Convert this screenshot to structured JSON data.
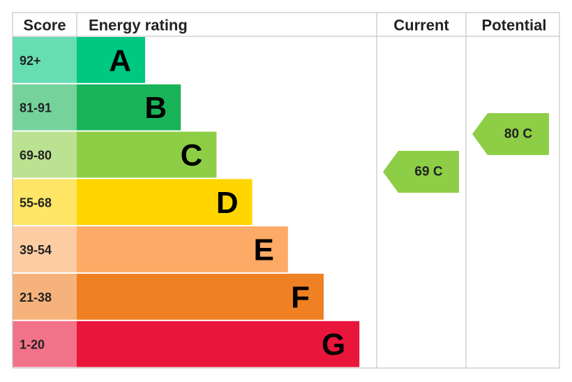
{
  "header": {
    "score": "Score",
    "rating": "Energy rating",
    "current": "Current",
    "potential": "Potential"
  },
  "bands": [
    {
      "score": "92+",
      "letter": "A",
      "color": "#00c781"
    },
    {
      "score": "81-91",
      "letter": "B",
      "color": "#19b459"
    },
    {
      "score": "69-80",
      "letter": "C",
      "color": "#8dce46"
    },
    {
      "score": "55-68",
      "letter": "D",
      "color": "#ffd500"
    },
    {
      "score": "39-54",
      "letter": "E",
      "color": "#fcaa65"
    },
    {
      "score": "21-38",
      "letter": "F",
      "color": "#ef8023"
    },
    {
      "score": "1-20",
      "letter": "G",
      "color": "#e9153b"
    }
  ],
  "current": {
    "label": "69 C",
    "color": "#8dce46"
  },
  "potential": {
    "label": "80 C",
    "color": "#8dce46"
  }
}
